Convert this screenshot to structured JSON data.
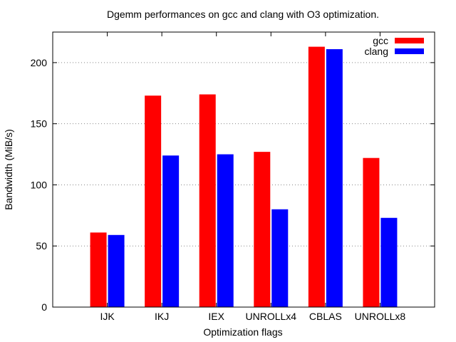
{
  "chart_data": {
    "type": "bar",
    "title": "Dgemm performances on gcc and clang with O3 optimization.",
    "xlabel": "Optimization flags",
    "ylabel": "Bandwidth (MiB/s)",
    "ylim": [
      0,
      225
    ],
    "yticks": [
      0,
      50,
      100,
      150,
      200
    ],
    "grid": "horizontal dotted",
    "legend_position": "top-right",
    "categories": [
      "IJK",
      "IKJ",
      "IEX",
      "UNROLLx4",
      "CBLAS",
      "UNROLLx8"
    ],
    "series": [
      {
        "name": "gcc",
        "color": "#ff0000",
        "values": [
          61,
          173,
          174,
          127,
          213,
          122
        ]
      },
      {
        "name": "clang",
        "color": "#0000ff",
        "values": [
          59,
          124,
          125,
          80,
          211,
          73
        ]
      }
    ]
  }
}
